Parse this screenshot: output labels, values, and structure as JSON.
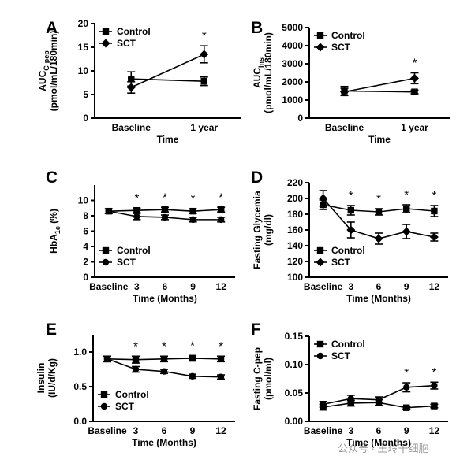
{
  "chart_data": [
    {
      "type": "line",
      "panel": "A",
      "legend": "top-left",
      "y_label": [
        [
          {
            "text": "AUC"
          },
          {
            "text": "C-pep",
            "sub": true
          }
        ],
        [
          {
            "text": "(pmol/mL/180min)"
          }
        ]
      ],
      "x_label": "Time",
      "categories": [
        "Baseline",
        "1 year"
      ],
      "ylim": [
        0,
        20
      ],
      "yticks": [
        0,
        5,
        10,
        15,
        20
      ],
      "series": [
        {
          "name": "Control",
          "color": "#000000",
          "marker": "square",
          "values": [
            8.3,
            7.8
          ],
          "errors": [
            1.5,
            0.9
          ]
        },
        {
          "name": "SCT",
          "color": "#000000",
          "marker": "diamond",
          "values": [
            6.5,
            13.5
          ],
          "errors": [
            1.2,
            1.8
          ]
        }
      ],
      "star_labels": [
        null,
        "*"
      ]
    },
    {
      "type": "line",
      "panel": "B",
      "legend": "top-left",
      "y_label": [
        [
          {
            "text": "AUC"
          },
          {
            "text": "Ins",
            "sub": true
          }
        ],
        [
          {
            "text": "(pmol/mL/180min)"
          }
        ]
      ],
      "x_label": "Time",
      "categories": [
        "Baseline",
        "1 year"
      ],
      "ylim": [
        0,
        5000
      ],
      "yticks": [
        0,
        1000,
        2000,
        3000,
        4000,
        5000
      ],
      "series": [
        {
          "name": "Control",
          "color": "#000000",
          "marker": "square",
          "values": [
            1500,
            1450
          ],
          "errors": [
            250,
            100
          ]
        },
        {
          "name": "SCT",
          "color": "#000000",
          "marker": "diamond",
          "values": [
            1450,
            2200
          ],
          "errors": [
            200,
            300
          ]
        }
      ],
      "star_labels": [
        null,
        "*"
      ]
    },
    {
      "type": "line",
      "panel": "C",
      "legend": "bottom-left",
      "y_label": [
        [
          {
            "text": "HbA"
          },
          {
            "text": "1c",
            "sub": true
          },
          {
            "text": " (%)"
          }
        ]
      ],
      "x_label": "Time (Months)",
      "categories": [
        "Baseline",
        "3",
        "6",
        "9",
        "12"
      ],
      "ylim": [
        0,
        12
      ],
      "yticks": [
        0,
        2,
        4,
        6,
        8,
        10
      ],
      "series": [
        {
          "name": "Control",
          "color": "#000000",
          "marker": "square",
          "values": [
            8.6,
            8.7,
            8.8,
            8.6,
            8.8
          ],
          "errors": [
            0.3,
            0.3,
            0.3,
            0.3,
            0.3
          ]
        },
        {
          "name": "SCT",
          "color": "#000000",
          "marker": "circle",
          "values": [
            8.6,
            7.9,
            7.8,
            7.5,
            7.5
          ],
          "errors": [
            0.3,
            0.4,
            0.3,
            0.3,
            0.3
          ]
        }
      ],
      "star_labels": [
        null,
        "*",
        "*",
        "*",
        "*"
      ]
    },
    {
      "type": "line",
      "panel": "D",
      "legend": "bottom-left",
      "y_label": [
        [
          {
            "text": "Fasting Glycemia"
          }
        ],
        [
          {
            "text": "(mg/dl)"
          }
        ]
      ],
      "x_label": "Time (Months)",
      "categories": [
        "Baseline",
        "3",
        "6",
        "9",
        "12"
      ],
      "ylim": [
        100,
        220
      ],
      "yticks": [
        100,
        120,
        140,
        160,
        180,
        200,
        220
      ],
      "series": [
        {
          "name": "Control",
          "color": "#000000",
          "marker": "square",
          "values": [
            192,
            185,
            183,
            187,
            184
          ],
          "errors": [
            6,
            6,
            4,
            5,
            7
          ]
        },
        {
          "name": "SCT",
          "color": "#000000",
          "marker": "diamond",
          "values": [
            200,
            160,
            149,
            158,
            151
          ],
          "errors": [
            10,
            10,
            7,
            9,
            5
          ]
        }
      ],
      "star_labels": [
        null,
        "*",
        "*",
        "*",
        "*"
      ]
    },
    {
      "type": "line",
      "panel": "E",
      "legend": "bottom-left",
      "y_label": [
        [
          {
            "text": "Insulin"
          }
        ],
        [
          {
            "text": "(IU/d/Kg)"
          }
        ]
      ],
      "x_label": "Time (Months)",
      "categories": [
        "Baseline",
        "3",
        "6",
        "9",
        "12"
      ],
      "ylim": [
        0,
        1.25
      ],
      "yticks": [
        {
          "value": 0,
          "label": "0.0"
        },
        {
          "value": 0.5,
          "label": "0.5"
        },
        {
          "value": 1,
          "label": "1.0"
        }
      ],
      "series": [
        {
          "name": "Control",
          "color": "#000000",
          "marker": "square",
          "values": [
            0.9,
            0.89,
            0.9,
            0.91,
            0.9
          ],
          "errors": [
            0.04,
            0.05,
            0.04,
            0.04,
            0.04
          ]
        },
        {
          "name": "SCT",
          "color": "#000000",
          "marker": "circle",
          "values": [
            0.9,
            0.75,
            0.72,
            0.65,
            0.64
          ],
          "errors": [
            0.04,
            0.04,
            0.03,
            0.03,
            0.03
          ]
        }
      ],
      "star_labels": [
        null,
        "*",
        "*",
        "*",
        "*"
      ]
    },
    {
      "type": "line",
      "panel": "F",
      "legend": "top-left",
      "y_label": [
        [
          {
            "text": "Fasting C-pep"
          }
        ],
        [
          {
            "text": "(pmol/ml)"
          }
        ]
      ],
      "x_label": "Time (Months)",
      "categories": [
        "Baseline",
        "3",
        "6",
        "9",
        "12"
      ],
      "ylim": [
        0,
        0.15
      ],
      "yticks": [
        {
          "value": 0,
          "label": "0.00"
        },
        {
          "value": 0.05,
          "label": "0.05"
        },
        {
          "value": 0.1,
          "label": "0.10"
        },
        {
          "value": 0.15,
          "label": "0.15"
        }
      ],
      "series": [
        {
          "name": "Control",
          "color": "#000000",
          "marker": "square",
          "values": [
            0.025,
            0.032,
            0.033,
            0.024,
            0.027
          ],
          "errors": [
            0.005,
            0.005,
            0.005,
            0.002,
            0.003
          ]
        },
        {
          "name": "SCT",
          "color": "#000000",
          "marker": "circle",
          "values": [
            0.03,
            0.04,
            0.038,
            0.06,
            0.063
          ],
          "errors": [
            0.005,
            0.006,
            0.005,
            0.008,
            0.006
          ]
        }
      ],
      "star_labels": [
        null,
        null,
        null,
        "*",
        "*"
      ]
    }
  ],
  "watermark": "公众号 · 王玲干细胞"
}
